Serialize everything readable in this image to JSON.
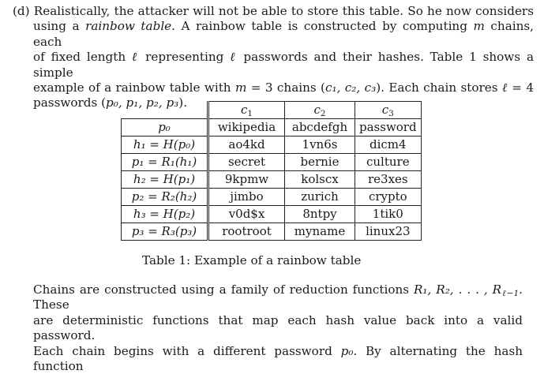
{
  "top_paragraph": {
    "label": "(d)",
    "line1": "Realistically, the attacker will not be able to store this table. So he now considers",
    "line2_a": "using a ",
    "line2_em": "rainbow table",
    "line2_b": ". A rainbow table is constructed by computing ",
    "line2_m": "m",
    "line2_c": " chains, each",
    "line3_a": "of fixed length ",
    "line3_l": "ℓ",
    "line3_b": " representing ",
    "line3_l2": "ℓ",
    "line3_c": " passwords and their hashes. Table 1 shows a simple",
    "line4_a": "example of a rainbow table with ",
    "line4_m": "m",
    "line4_b": " = 3 chains (",
    "line4_chains": "c₁, c₂, c₃",
    "line4_c": "). Each chain stores ",
    "line4_l": "ℓ",
    "line4_d": " = 4",
    "line5_a": "passwords (",
    "line5_ps": "p₀, p₁, p₂, p₃",
    "line5_b": ")."
  },
  "table": {
    "columns": [
      "c1",
      "c2",
      "c3"
    ],
    "column_labels": [
      {
        "base": "c",
        "sub": "1"
      },
      {
        "base": "c",
        "sub": "2"
      },
      {
        "base": "c",
        "sub": "3"
      }
    ],
    "rows": [
      {
        "label": "p₀",
        "cells": [
          "wikipedia",
          "abcdefgh",
          "password"
        ]
      },
      {
        "label": "h₁ = H(p₀)",
        "cells": [
          "ao4kd",
          "1vn6s",
          "dicm4"
        ]
      },
      {
        "label": "p₁ = R₁(h₁)",
        "cells": [
          "secret",
          "bernie",
          "culture"
        ]
      },
      {
        "label": "h₂ = H(p₁)",
        "cells": [
          "9kpmw",
          "kolscx",
          "re3xes"
        ]
      },
      {
        "label": "p₂ = R₂(h₂)",
        "cells": [
          "jimbo",
          "zurich",
          "crypto"
        ]
      },
      {
        "label": "h₃ = H(p₂)",
        "cells": [
          "v0d$x",
          "8ntpy",
          "1tik0"
        ]
      },
      {
        "label": "p₃ = R₃(p₃)",
        "cells": [
          "rootroot",
          "myname",
          "linux23"
        ]
      }
    ]
  },
  "caption": "Table 1: Example of a rainbow table",
  "bottom_paragraph": {
    "line1_a": "Chains are constructed using a family of reduction functions ",
    "line1_fns": "R₁, R₂, . . . , R",
    "line1_sub": "ℓ−1",
    "line1_b": ". These",
    "line2": "are deterministic functions that map each hash value back into a valid password.",
    "line3_a": "Each chain begins with a different password ",
    "line3_p": "p₀",
    "line3_b": ". By alternating the hash function"
  }
}
